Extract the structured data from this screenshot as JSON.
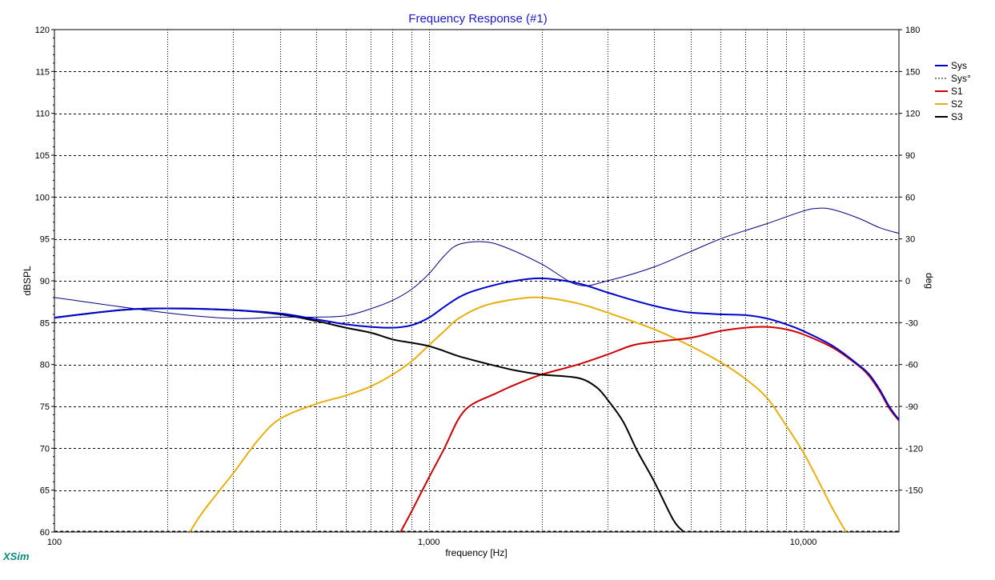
{
  "chart_data": {
    "type": "line",
    "title": "Frequency Response (#1)",
    "xlabel": "frequency [Hz]",
    "ylabel_left": "dBSPL",
    "ylabel_right": "deg",
    "x_scale": "log",
    "xlim": [
      100,
      18000
    ],
    "ylim_left": [
      60,
      120
    ],
    "ylim_right": [
      -180,
      180
    ],
    "x_tick_labels": [
      {
        "value": 100,
        "label": "100"
      },
      {
        "value": 1000,
        "label": "1,000"
      },
      {
        "value": 10000,
        "label": "10,000"
      }
    ],
    "y_left_ticks": [
      60,
      65,
      70,
      75,
      80,
      85,
      90,
      95,
      100,
      105,
      110,
      115,
      120
    ],
    "y_right_ticks": [
      -150,
      -120,
      -90,
      -60,
      -30,
      0,
      30,
      60,
      90,
      120,
      150,
      180
    ],
    "grid": true,
    "legend_position": "top-right",
    "series": [
      {
        "name": "Sys",
        "color": "#0000cc",
        "axis": "left",
        "style": "solid-thick",
        "points": [
          [
            100,
            85.6
          ],
          [
            150,
            86.5
          ],
          [
            200,
            86.7
          ],
          [
            300,
            86.5
          ],
          [
            400,
            86.1
          ],
          [
            500,
            85.4
          ],
          [
            600,
            84.8
          ],
          [
            700,
            84.5
          ],
          [
            800,
            84.4
          ],
          [
            900,
            84.7
          ],
          [
            1000,
            85.6
          ],
          [
            1100,
            86.9
          ],
          [
            1200,
            88.0
          ],
          [
            1300,
            88.7
          ],
          [
            1500,
            89.5
          ],
          [
            1700,
            90.0
          ],
          [
            2000,
            90.3
          ],
          [
            2500,
            89.7
          ],
          [
            3000,
            88.6
          ],
          [
            3500,
            87.7
          ],
          [
            4000,
            87.0
          ],
          [
            4500,
            86.5
          ],
          [
            5000,
            86.2
          ],
          [
            6000,
            86.0
          ],
          [
            7000,
            85.9
          ],
          [
            8000,
            85.5
          ],
          [
            9000,
            84.8
          ],
          [
            10000,
            84.0
          ],
          [
            12000,
            82.2
          ],
          [
            14000,
            80.0
          ],
          [
            15000,
            78.8
          ],
          [
            16000,
            77.0
          ],
          [
            17000,
            74.9
          ],
          [
            18000,
            73.4
          ]
        ]
      },
      {
        "name": "Sys°",
        "color": "#000080",
        "axis": "right",
        "style": "solid-thin",
        "points": [
          [
            100,
            -12
          ],
          [
            200,
            -23
          ],
          [
            300,
            -27
          ],
          [
            400,
            -26
          ],
          [
            500,
            -26
          ],
          [
            600,
            -25
          ],
          [
            700,
            -20
          ],
          [
            800,
            -14
          ],
          [
            900,
            -6
          ],
          [
            1000,
            5
          ],
          [
            1100,
            18
          ],
          [
            1200,
            26
          ],
          [
            1400,
            28
          ],
          [
            1600,
            24
          ],
          [
            2000,
            12
          ],
          [
            2500,
            -3
          ],
          [
            3000,
            0
          ],
          [
            4000,
            10
          ],
          [
            5000,
            21
          ],
          [
            6000,
            30
          ],
          [
            7000,
            36
          ],
          [
            8000,
            41
          ],
          [
            10000,
            50
          ],
          [
            11000,
            52
          ],
          [
            12000,
            51
          ],
          [
            14000,
            45
          ],
          [
            16000,
            38
          ],
          [
            18000,
            34
          ]
        ]
      },
      {
        "name": "S1",
        "color": "#cc0000",
        "axis": "left",
        "style": "solid-thick",
        "points": [
          [
            840,
            60
          ],
          [
            900,
            62.5
          ],
          [
            1000,
            66.5
          ],
          [
            1100,
            70
          ],
          [
            1200,
            73.5
          ],
          [
            1300,
            75.2
          ],
          [
            1500,
            76.5
          ],
          [
            1700,
            77.6
          ],
          [
            2000,
            78.8
          ],
          [
            2500,
            80.0
          ],
          [
            3000,
            81.2
          ],
          [
            3500,
            82.3
          ],
          [
            4000,
            82.7
          ],
          [
            5000,
            83.2
          ],
          [
            6000,
            84.0
          ],
          [
            7000,
            84.4
          ],
          [
            8000,
            84.5
          ],
          [
            9000,
            84.2
          ],
          [
            10000,
            83.6
          ],
          [
            12000,
            82.0
          ],
          [
            14000,
            79.9
          ],
          [
            15000,
            78.6
          ],
          [
            16000,
            76.8
          ],
          [
            17000,
            74.7
          ],
          [
            18000,
            73.3
          ]
        ]
      },
      {
        "name": "S2",
        "color": "#e6b010",
        "axis": "left",
        "style": "solid-thick",
        "points": [
          [
            230,
            60
          ],
          [
            250,
            62.5
          ],
          [
            300,
            67
          ],
          [
            350,
            71
          ],
          [
            400,
            73.5
          ],
          [
            500,
            75.3
          ],
          [
            600,
            76.3
          ],
          [
            700,
            77.4
          ],
          [
            800,
            78.8
          ],
          [
            900,
            80.4
          ],
          [
            1000,
            82.3
          ],
          [
            1100,
            84.0
          ],
          [
            1200,
            85.5
          ],
          [
            1400,
            87.0
          ],
          [
            1700,
            87.8
          ],
          [
            2000,
            88.0
          ],
          [
            2500,
            87.3
          ],
          [
            3000,
            86.2
          ],
          [
            4000,
            84.2
          ],
          [
            5000,
            82.2
          ],
          [
            6000,
            80.3
          ],
          [
            7000,
            78.3
          ],
          [
            8000,
            76.0
          ],
          [
            9000,
            72.7
          ],
          [
            10000,
            69.5
          ],
          [
            11000,
            66.0
          ],
          [
            12000,
            62.7
          ],
          [
            13000,
            60
          ]
        ]
      },
      {
        "name": "S3",
        "color": "#000000",
        "axis": "left",
        "style": "solid-thick",
        "points": [
          [
            100,
            85.6
          ],
          [
            150,
            86.5
          ],
          [
            200,
            86.7
          ],
          [
            300,
            86.5
          ],
          [
            400,
            86.0
          ],
          [
            500,
            85.2
          ],
          [
            600,
            84.4
          ],
          [
            700,
            83.8
          ],
          [
            800,
            83.0
          ],
          [
            900,
            82.6
          ],
          [
            1000,
            82.2
          ],
          [
            1100,
            81.6
          ],
          [
            1200,
            81.0
          ],
          [
            1400,
            80.2
          ],
          [
            1700,
            79.3
          ],
          [
            2000,
            78.8
          ],
          [
            2500,
            78.4
          ],
          [
            2800,
            77.3
          ],
          [
            3000,
            75.8
          ],
          [
            3300,
            73.2
          ],
          [
            3600,
            69.7
          ],
          [
            4000,
            66.0
          ],
          [
            4500,
            61.4
          ],
          [
            4800,
            60
          ]
        ]
      }
    ]
  },
  "branding": {
    "label": "XSim"
  }
}
